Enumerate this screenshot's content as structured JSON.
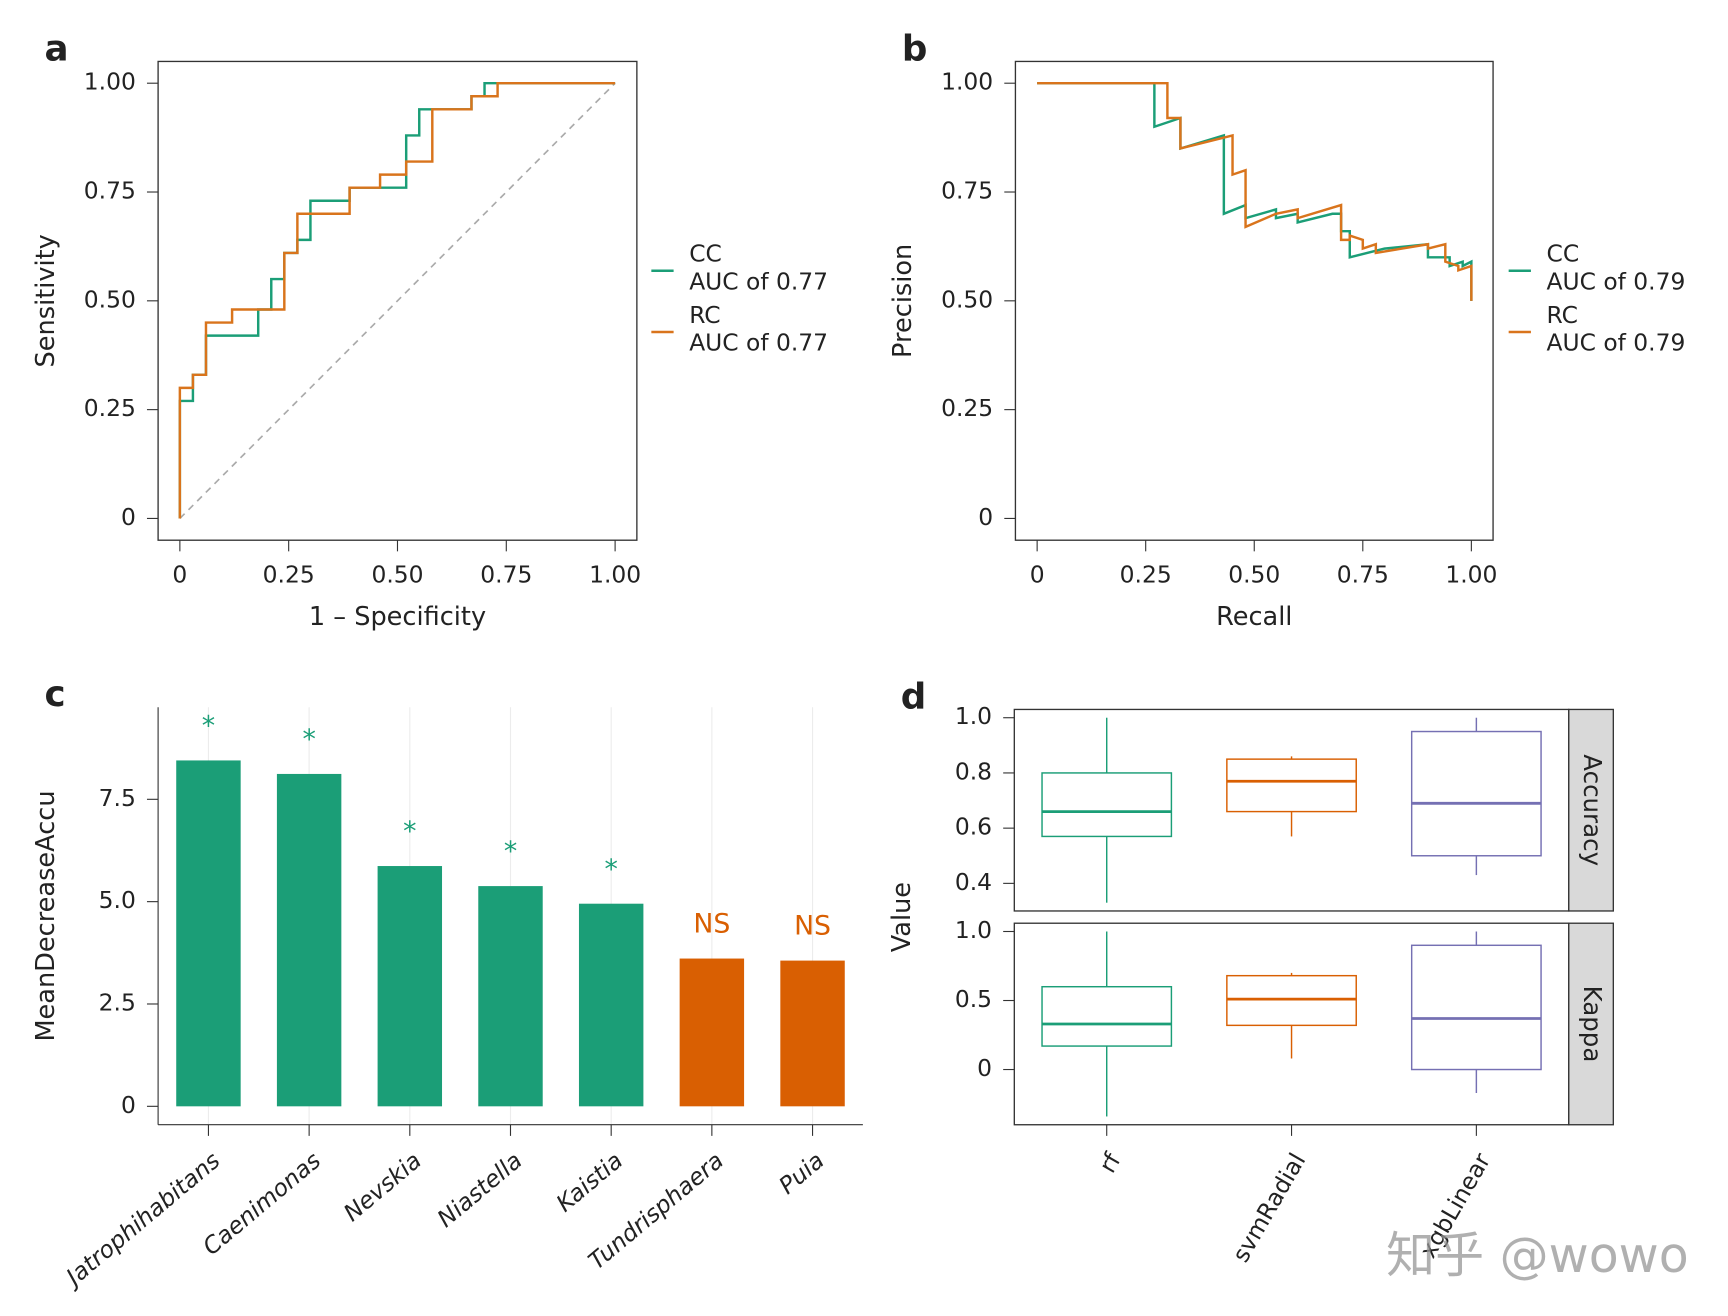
{
  "chart_data": [
    {
      "type": "line",
      "panel": "a",
      "xlabel": "1 – Specificity",
      "ylabel": "Sensitivity",
      "xlim": [
        -0.05,
        1.05
      ],
      "ylim": [
        -0.05,
        1.05
      ],
      "xticks": [
        0,
        0.25,
        {
          "value": 0.5,
          "label": "0.50"
        },
        0.75,
        {
          "value": 1,
          "label": "1.00"
        }
      ],
      "yticks": [
        0,
        0.25,
        {
          "value": 0.5,
          "label": "0.50"
        },
        0.75,
        {
          "value": 1,
          "label": "1.00"
        }
      ],
      "diagonal": true,
      "series": [
        {
          "name": "CC",
          "legend_label": "AUC of 0.77",
          "color": "#1b9e77",
          "x": [
            0,
            0,
            0.03,
            0.03,
            0.06,
            0.06,
            0.18,
            0.18,
            0.21,
            0.21,
            0.24,
            0.24,
            0.27,
            0.27,
            0.3,
            0.3,
            0.39,
            0.39,
            0.52,
            0.52,
            0.55,
            0.55,
            0.67,
            0.67,
            0.7,
            0.7,
            1
          ],
          "values": [
            0,
            0.27,
            0.27,
            0.33,
            0.33,
            0.42,
            0.42,
            0.48,
            0.48,
            0.55,
            0.55,
            0.61,
            0.61,
            0.64,
            0.64,
            0.73,
            0.73,
            0.76,
            0.76,
            0.88,
            0.88,
            0.94,
            0.94,
            0.97,
            0.97,
            1,
            1
          ]
        },
        {
          "name": "RC",
          "legend_label": "AUC of 0.77",
          "color": "#d9741c",
          "x": [
            0,
            0,
            0.03,
            0.03,
            0.06,
            0.06,
            0.12,
            0.12,
            0.24,
            0.24,
            0.27,
            0.27,
            0.39,
            0.39,
            0.46,
            0.46,
            0.52,
            0.52,
            0.58,
            0.58,
            0.67,
            0.67,
            0.73,
            0.73,
            1
          ],
          "values": [
            0,
            0.3,
            0.3,
            0.33,
            0.33,
            0.45,
            0.45,
            0.48,
            0.48,
            0.61,
            0.61,
            0.7,
            0.7,
            0.76,
            0.76,
            0.79,
            0.79,
            0.82,
            0.82,
            0.94,
            0.94,
            0.97,
            0.97,
            1,
            1
          ]
        }
      ]
    },
    {
      "type": "line",
      "panel": "b",
      "xlabel": "Recall",
      "ylabel": "Precision",
      "xlim": [
        -0.05,
        1.05
      ],
      "ylim": [
        -0.05,
        1.05
      ],
      "xticks": [
        0,
        0.25,
        {
          "value": 0.5,
          "label": "0.50"
        },
        0.75,
        {
          "value": 1,
          "label": "1.00"
        }
      ],
      "yticks": [
        0,
        0.25,
        {
          "value": 0.5,
          "label": "0.50"
        },
        0.75,
        {
          "value": 1,
          "label": "1.00"
        }
      ],
      "diagonal": false,
      "series": [
        {
          "name": "CC",
          "legend_label": "AUC of 0.79",
          "color": "#1b9e77",
          "x": [
            0,
            0.27,
            0.27,
            0.3,
            0.33,
            0.33,
            0.43,
            0.43,
            0.48,
            0.48,
            0.55,
            0.55,
            0.6,
            0.6,
            0.68,
            0.7,
            0.7,
            0.72,
            0.72,
            0.8,
            0.9,
            0.9,
            0.95,
            0.95,
            0.98,
            0.98,
            1,
            1
          ],
          "values": [
            1,
            1,
            0.9,
            0.91,
            0.92,
            0.85,
            0.88,
            0.7,
            0.72,
            0.69,
            0.71,
            0.69,
            0.7,
            0.68,
            0.7,
            0.7,
            0.66,
            0.66,
            0.6,
            0.62,
            0.63,
            0.6,
            0.6,
            0.58,
            0.59,
            0.58,
            0.59,
            0.5
          ]
        },
        {
          "name": "RC",
          "legend_label": "AUC of 0.79",
          "color": "#d9741c",
          "x": [
            0,
            0.3,
            0.3,
            0.33,
            0.33,
            0.45,
            0.45,
            0.48,
            0.48,
            0.55,
            0.6,
            0.6,
            0.7,
            0.7,
            0.72,
            0.72,
            0.75,
            0.75,
            0.78,
            0.78,
            0.9,
            0.9,
            0.94,
            0.94,
            0.97,
            0.97,
            1,
            1
          ],
          "values": [
            1,
            1,
            0.92,
            0.92,
            0.85,
            0.88,
            0.79,
            0.8,
            0.67,
            0.7,
            0.71,
            0.69,
            0.72,
            0.64,
            0.64,
            0.65,
            0.64,
            0.62,
            0.63,
            0.61,
            0.63,
            0.62,
            0.63,
            0.59,
            0.58,
            0.57,
            0.58,
            0.5
          ]
        }
      ]
    },
    {
      "type": "bar",
      "panel": "c",
      "ylabel": "MeanDecreaseAccu",
      "categories": [
        "Jatrophihabitans",
        "Caenimonas",
        "Nevskia",
        "Niastella",
        "Kaistia",
        "Tundrisphaera",
        "Puia"
      ],
      "values": [
        8.45,
        8.12,
        5.87,
        5.38,
        4.95,
        3.61,
        3.56
      ],
      "colors": [
        "#1b9e77",
        "#1b9e77",
        "#1b9e77",
        "#1b9e77",
        "#1b9e77",
        "#d95f02",
        "#d95f02"
      ],
      "annotations": [
        "*",
        "*",
        "*",
        "*",
        "*",
        "NS",
        "NS"
      ],
      "ylim": [
        -0.45,
        9.75
      ],
      "yticks": [
        0,
        2.5,
        {
          "value": 5,
          "label": "5.0"
        },
        {
          "value": 7.5,
          "label": "7.5"
        }
      ],
      "grid": true
    },
    {
      "type": "box",
      "panel": "d",
      "ylabel": "Value",
      "categories": [
        "rf",
        "svmRadial",
        "xgbLinear"
      ],
      "colors": [
        "#1b9e77",
        "#d95f02",
        "#7570b3"
      ],
      "facets": [
        {
          "label": "Accuracy",
          "ylim": [
            0.3,
            1.03
          ],
          "yticks": [
            0.4,
            0.6,
            0.8,
            {
              "value": 1,
              "label": "1.0"
            }
          ],
          "boxes": [
            {
              "min": 0.33,
              "q1": 0.57,
              "median": 0.66,
              "q3": 0.8,
              "max": 1
            },
            {
              "min": 0.57,
              "q1": 0.66,
              "median": 0.77,
              "q3": 0.85,
              "max": 0.86
            },
            {
              "min": 0.43,
              "q1": 0.5,
              "median": 0.69,
              "q3": 0.95,
              "max": 1
            }
          ]
        },
        {
          "label": "Kappa",
          "ylim": [
            -0.4,
            1.06
          ],
          "yticks": [
            0,
            0.5,
            {
              "value": 1,
              "label": "1.0"
            }
          ],
          "boxes": [
            {
              "min": -0.34,
              "q1": 0.17,
              "median": 0.33,
              "q3": 0.6,
              "max": 1
            },
            {
              "min": 0.08,
              "q1": 0.32,
              "median": 0.51,
              "q3": 0.68,
              "max": 0.7
            },
            {
              "min": -0.17,
              "q1": 0,
              "median": 0.37,
              "q3": 0.9,
              "max": 1
            }
          ]
        }
      ]
    }
  ],
  "watermark": "知乎 @wowo"
}
